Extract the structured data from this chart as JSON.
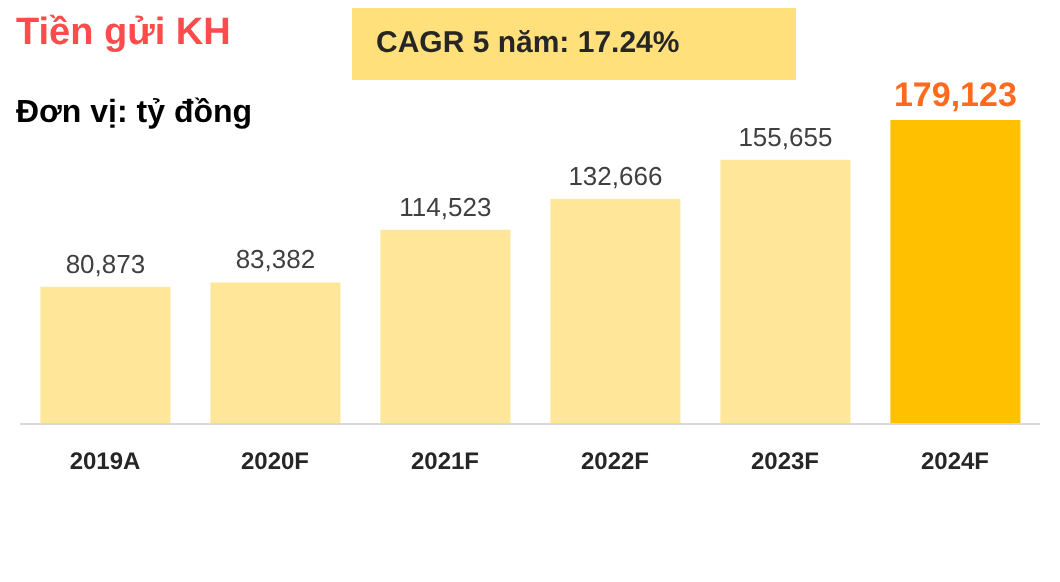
{
  "chart_data": {
    "type": "bar",
    "title": "Tiền gửi KH",
    "subtitle": "Đơn vị: tỷ đồng",
    "annotations": [
      "CAGR 5 năm: 17.24%"
    ],
    "categories": [
      "2019A",
      "2020F",
      "2021F",
      "2022F",
      "2023F",
      "2024F"
    ],
    "values": [
      80873,
      83382,
      114523,
      132666,
      155655,
      179123
    ],
    "colors": [
      "#ffe699",
      "#ffe699",
      "#ffe699",
      "#ffe699",
      "#ffe699",
      "#ffc000"
    ],
    "value_labels": [
      "80,873",
      "83,382",
      "114,523",
      "132,666",
      "155,655",
      "179,123"
    ],
    "data_labels": true
  }
}
